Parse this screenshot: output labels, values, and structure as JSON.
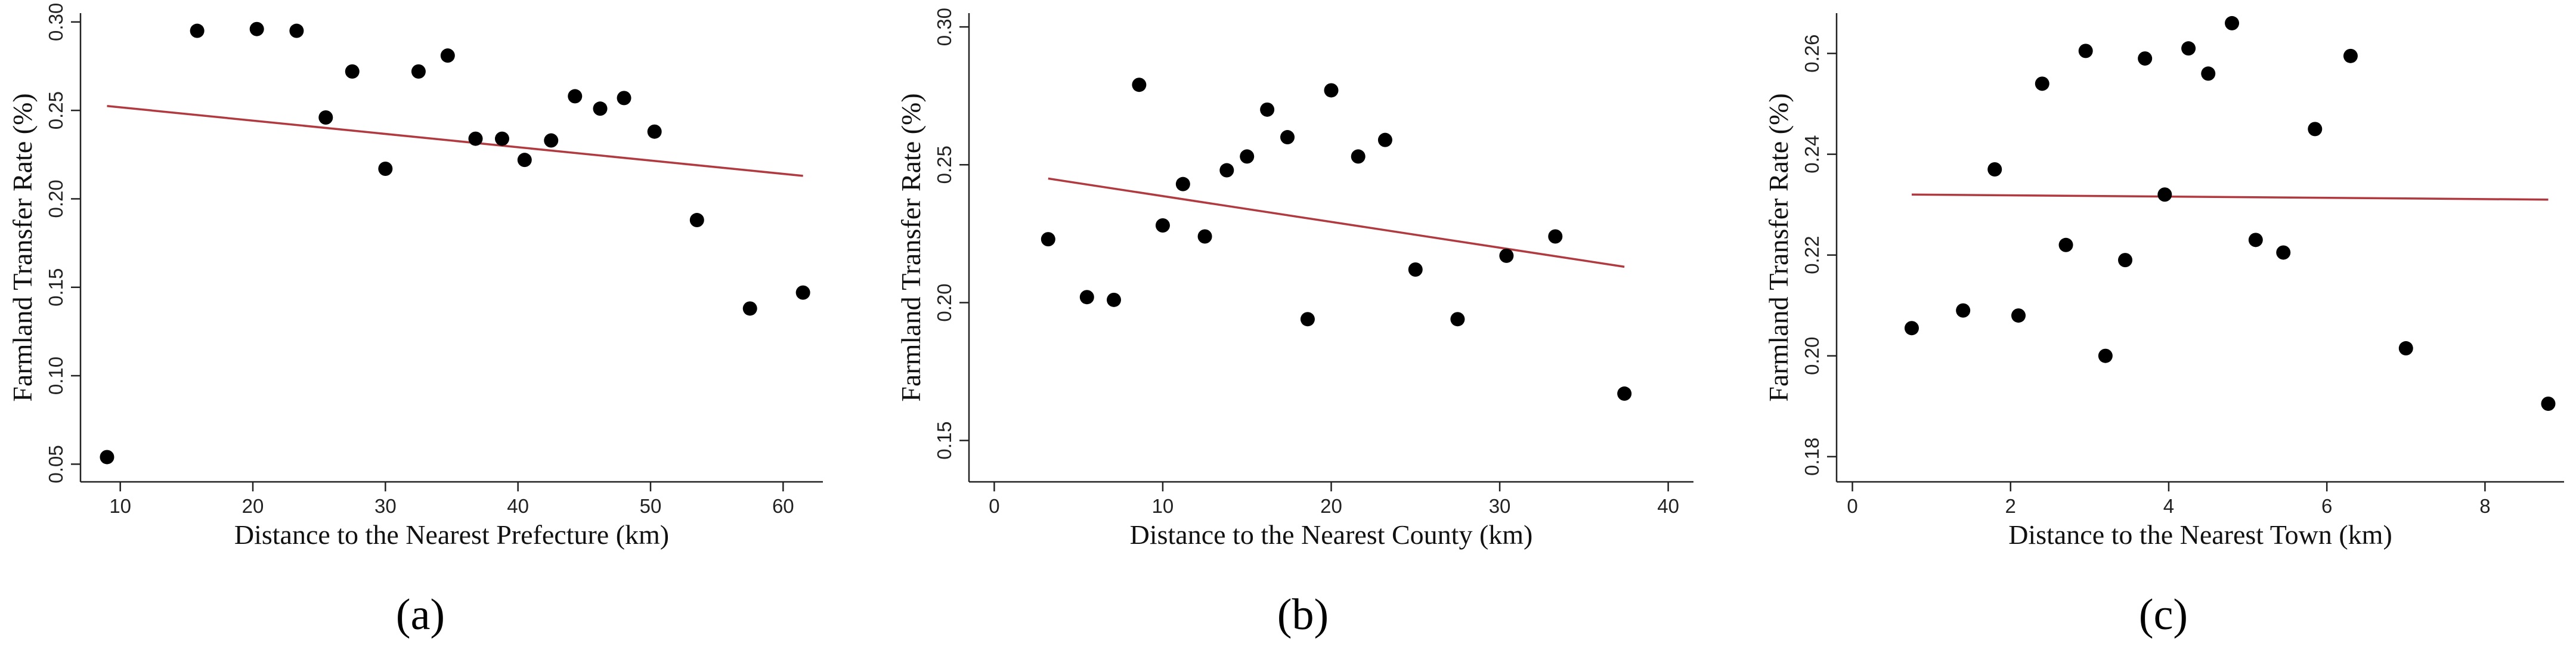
{
  "colors": {
    "point": "#000000",
    "fit_line": "#b03a3f",
    "axis": "#222222"
  },
  "chart_data": [
    {
      "type": "scatter",
      "panel_label": "(a)",
      "xlabel": "Distance to the Nearest Prefecture (km)",
      "ylabel": "Farmland Transfer Rate (%)",
      "xlim": [
        7,
        63
      ],
      "ylim": [
        0.04,
        0.305
      ],
      "x_ticks": [
        10,
        20,
        30,
        40,
        50,
        60
      ],
      "y_ticks": [
        0.05,
        0.1,
        0.15,
        0.2,
        0.25,
        0.3
      ],
      "tick_decimals_y": 2,
      "points": [
        {
          "x": 9.0,
          "y": 0.054
        },
        {
          "x": 15.8,
          "y": 0.295
        },
        {
          "x": 20.3,
          "y": 0.296
        },
        {
          "x": 23.3,
          "y": 0.295
        },
        {
          "x": 25.5,
          "y": 0.246
        },
        {
          "x": 27.5,
          "y": 0.272
        },
        {
          "x": 30.0,
          "y": 0.217
        },
        {
          "x": 32.5,
          "y": 0.272
        },
        {
          "x": 34.7,
          "y": 0.281
        },
        {
          "x": 36.8,
          "y": 0.234
        },
        {
          "x": 38.8,
          "y": 0.234
        },
        {
          "x": 40.5,
          "y": 0.222
        },
        {
          "x": 42.5,
          "y": 0.233
        },
        {
          "x": 44.3,
          "y": 0.258
        },
        {
          "x": 46.2,
          "y": 0.251
        },
        {
          "x": 48.0,
          "y": 0.257
        },
        {
          "x": 50.3,
          "y": 0.238
        },
        {
          "x": 53.5,
          "y": 0.188
        },
        {
          "x": 57.5,
          "y": 0.138
        },
        {
          "x": 61.5,
          "y": 0.147
        }
      ],
      "fit_line": {
        "x1": 9.0,
        "y1": 0.2525,
        "x2": 61.5,
        "y2": 0.213
      }
    },
    {
      "type": "scatter",
      "panel_label": "(b)",
      "xlabel": "Distance to the Nearest County (km)",
      "ylabel": "Farmland Transfer Rate (%)",
      "xlim": [
        -1.5,
        41.5
      ],
      "ylim": [
        0.135,
        0.305
      ],
      "x_ticks": [
        0,
        10,
        20,
        30,
        40
      ],
      "y_ticks": [
        0.15,
        0.2,
        0.25,
        0.3
      ],
      "tick_decimals_y": 2,
      "points": [
        {
          "x": 3.2,
          "y": 0.223
        },
        {
          "x": 5.5,
          "y": 0.202
        },
        {
          "x": 7.1,
          "y": 0.201
        },
        {
          "x": 8.6,
          "y": 0.279
        },
        {
          "x": 10.0,
          "y": 0.228
        },
        {
          "x": 11.2,
          "y": 0.243
        },
        {
          "x": 12.5,
          "y": 0.224
        },
        {
          "x": 13.8,
          "y": 0.248
        },
        {
          "x": 15.0,
          "y": 0.253
        },
        {
          "x": 16.2,
          "y": 0.27
        },
        {
          "x": 17.4,
          "y": 0.26
        },
        {
          "x": 18.6,
          "y": 0.194
        },
        {
          "x": 20.0,
          "y": 0.277
        },
        {
          "x": 21.6,
          "y": 0.253
        },
        {
          "x": 23.2,
          "y": 0.259
        },
        {
          "x": 25.0,
          "y": 0.212
        },
        {
          "x": 27.5,
          "y": 0.194
        },
        {
          "x": 30.4,
          "y": 0.217
        },
        {
          "x": 33.3,
          "y": 0.224
        },
        {
          "x": 37.4,
          "y": 0.167
        }
      ],
      "fit_line": {
        "x1": 3.2,
        "y1": 0.245,
        "x2": 37.4,
        "y2": 0.213
      }
    },
    {
      "type": "scatter",
      "panel_label": "(c)",
      "xlabel": "Distance to the Nearest Town (km)",
      "ylabel": "Farmland Transfer Rate (%)",
      "xlim": [
        -0.2,
        9.0
      ],
      "ylim": [
        0.175,
        0.268
      ],
      "x_ticks": [
        0,
        2,
        4,
        6,
        8
      ],
      "y_ticks": [
        0.18,
        0.2,
        0.22,
        0.24,
        0.26
      ],
      "tick_decimals_y": 2,
      "points": [
        {
          "x": 0.75,
          "y": 0.2055
        },
        {
          "x": 1.4,
          "y": 0.209
        },
        {
          "x": 1.8,
          "y": 0.237
        },
        {
          "x": 2.1,
          "y": 0.208
        },
        {
          "x": 2.4,
          "y": 0.254
        },
        {
          "x": 2.7,
          "y": 0.222
        },
        {
          "x": 2.95,
          "y": 0.2605
        },
        {
          "x": 3.2,
          "y": 0.2
        },
        {
          "x": 3.45,
          "y": 0.219
        },
        {
          "x": 3.7,
          "y": 0.259
        },
        {
          "x": 3.95,
          "y": 0.232
        },
        {
          "x": 4.25,
          "y": 0.261
        },
        {
          "x": 4.5,
          "y": 0.256
        },
        {
          "x": 4.8,
          "y": 0.266
        },
        {
          "x": 5.1,
          "y": 0.223
        },
        {
          "x": 5.45,
          "y": 0.2205
        },
        {
          "x": 5.85,
          "y": 0.245
        },
        {
          "x": 6.3,
          "y": 0.2595
        },
        {
          "x": 7.0,
          "y": 0.2015
        },
        {
          "x": 8.8,
          "y": 0.1905
        }
      ],
      "fit_line": {
        "x1": 0.75,
        "y1": 0.232,
        "x2": 8.8,
        "y2": 0.231
      }
    }
  ]
}
